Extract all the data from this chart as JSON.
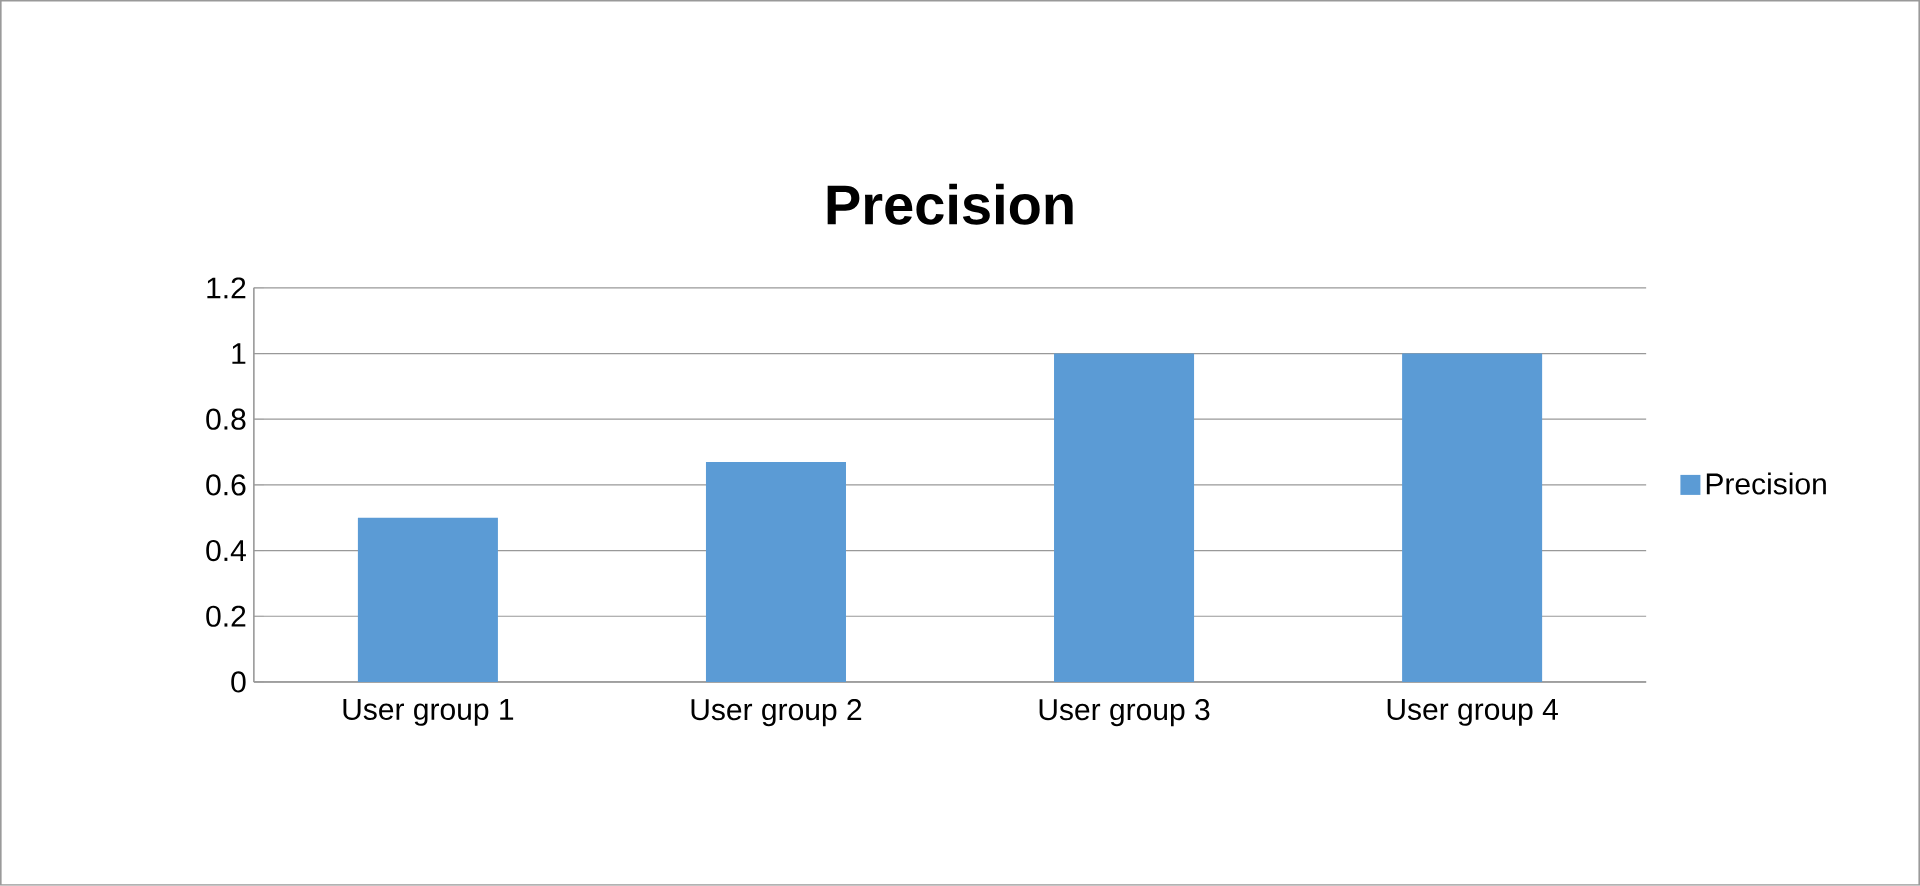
{
  "chart_data": {
    "type": "bar",
    "title": "Precision",
    "categories": [
      "User group 1",
      "User group 2",
      "User group 3",
      "User group 4"
    ],
    "series": [
      {
        "name": "Precision",
        "color": "#5b9bd5",
        "values": [
          0.5,
          0.67,
          1,
          1
        ]
      }
    ],
    "ylim": [
      0,
      1.2
    ],
    "yticks": [
      0,
      0.2,
      0.4,
      0.6,
      0.8,
      1,
      1.2
    ],
    "grid": "y",
    "legend": "right"
  }
}
